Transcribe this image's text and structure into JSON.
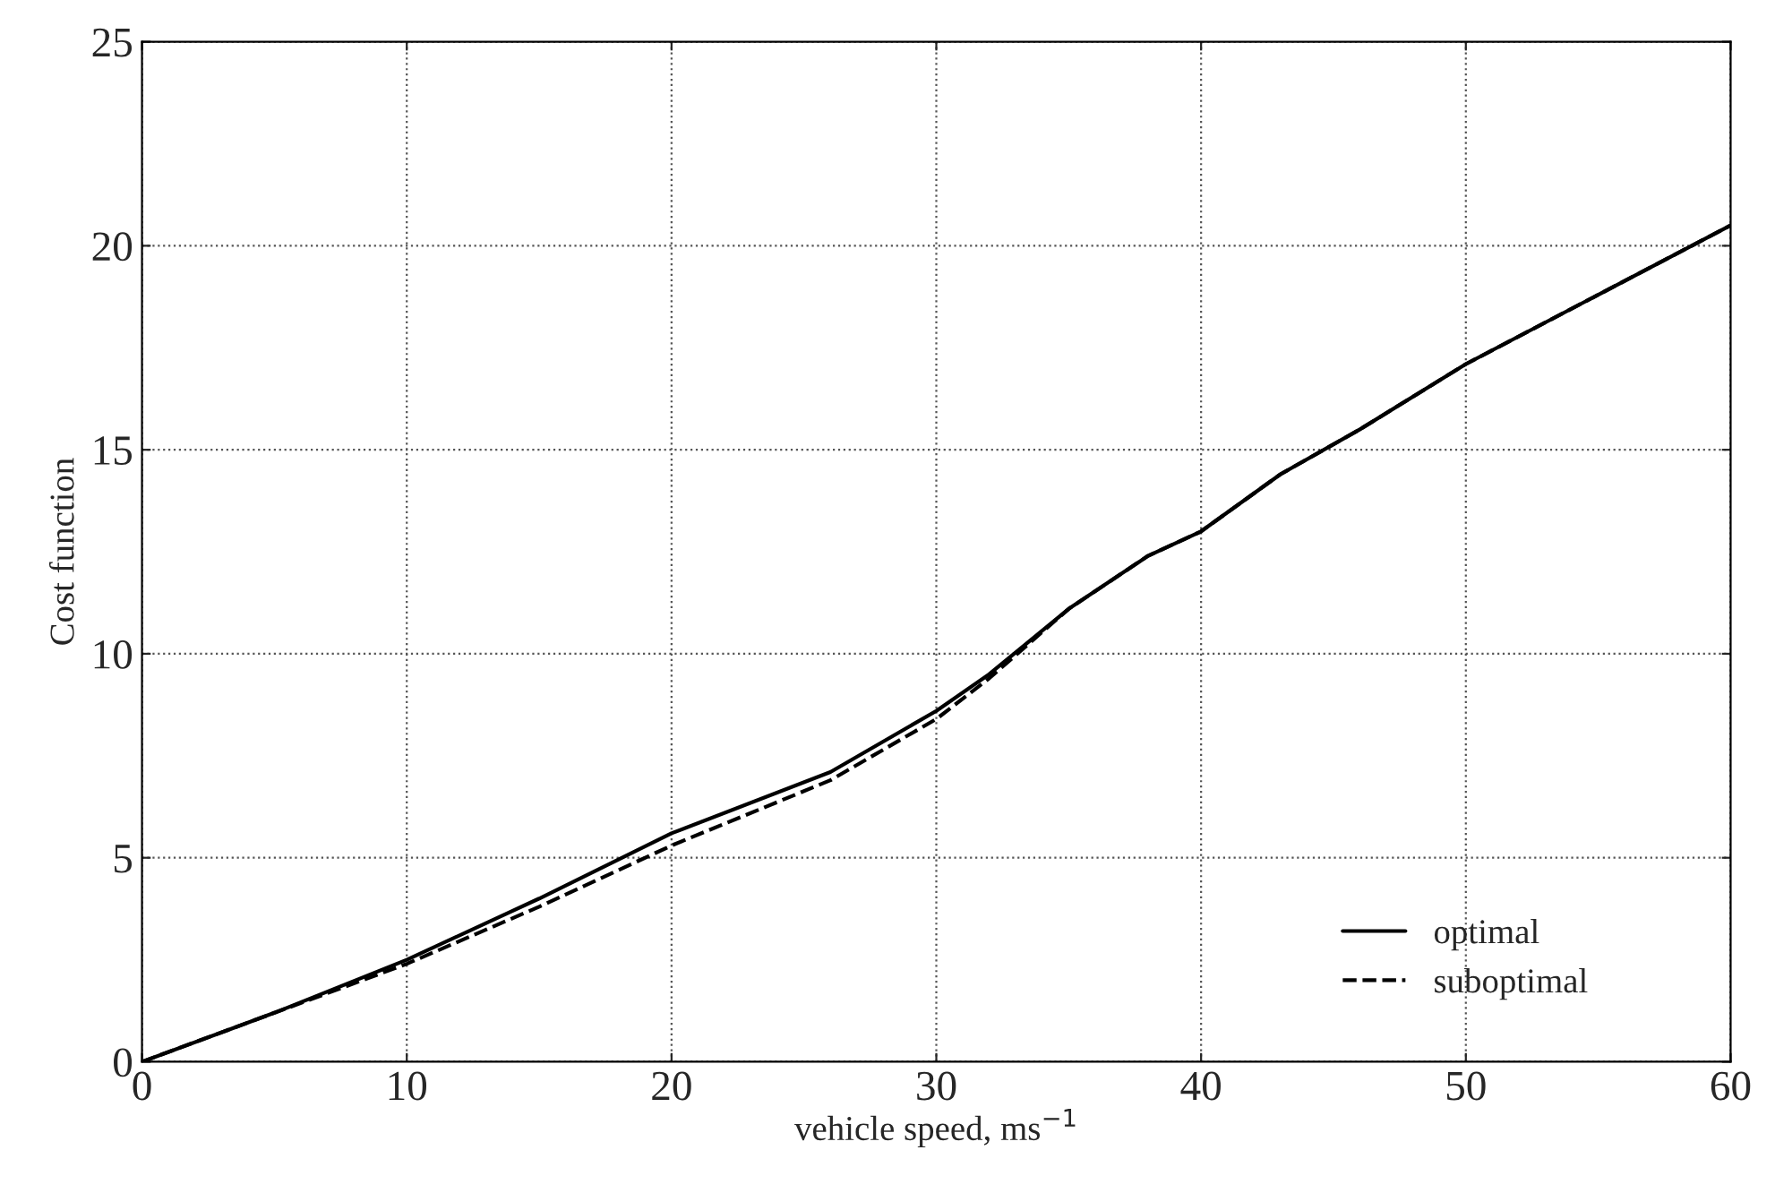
{
  "chart_data": {
    "type": "line",
    "xlabel": "vehicle speed, ms$^{−1}$",
    "ylabel": "Cost function",
    "xlim": [
      0,
      60
    ],
    "xticks": [
      0,
      10,
      20,
      30,
      40,
      50,
      60
    ],
    "ylim": [
      0,
      25
    ],
    "yticks": [
      0,
      5,
      10,
      15,
      20,
      25
    ],
    "grid": true,
    "legend": "bottom right",
    "series": [
      {
        "name": "optimal",
        "color": "#000000",
        "line_style": "solid",
        "x": [
          0,
          5,
          10,
          15,
          20,
          26,
          30,
          32,
          35,
          38,
          40,
          43,
          46,
          50,
          55,
          60
        ],
        "values": [
          0,
          1.2,
          2.5,
          4.0,
          5.6,
          7.1,
          8.6,
          9.5,
          11.1,
          12.4,
          13.0,
          14.4,
          15.5,
          17.1,
          18.8,
          20.5
        ]
      },
      {
        "name": "suboptimal",
        "color": "#000000",
        "line_style": "dashed",
        "x": [
          0,
          5,
          10,
          15,
          20,
          26,
          30,
          32,
          35,
          38,
          40,
          43,
          46,
          50,
          55,
          60
        ],
        "values": [
          0,
          1.2,
          2.4,
          3.8,
          5.3,
          6.9,
          8.4,
          9.4,
          11.1,
          12.4,
          13.0,
          14.4,
          15.5,
          17.1,
          18.8,
          20.5
        ]
      }
    ]
  }
}
